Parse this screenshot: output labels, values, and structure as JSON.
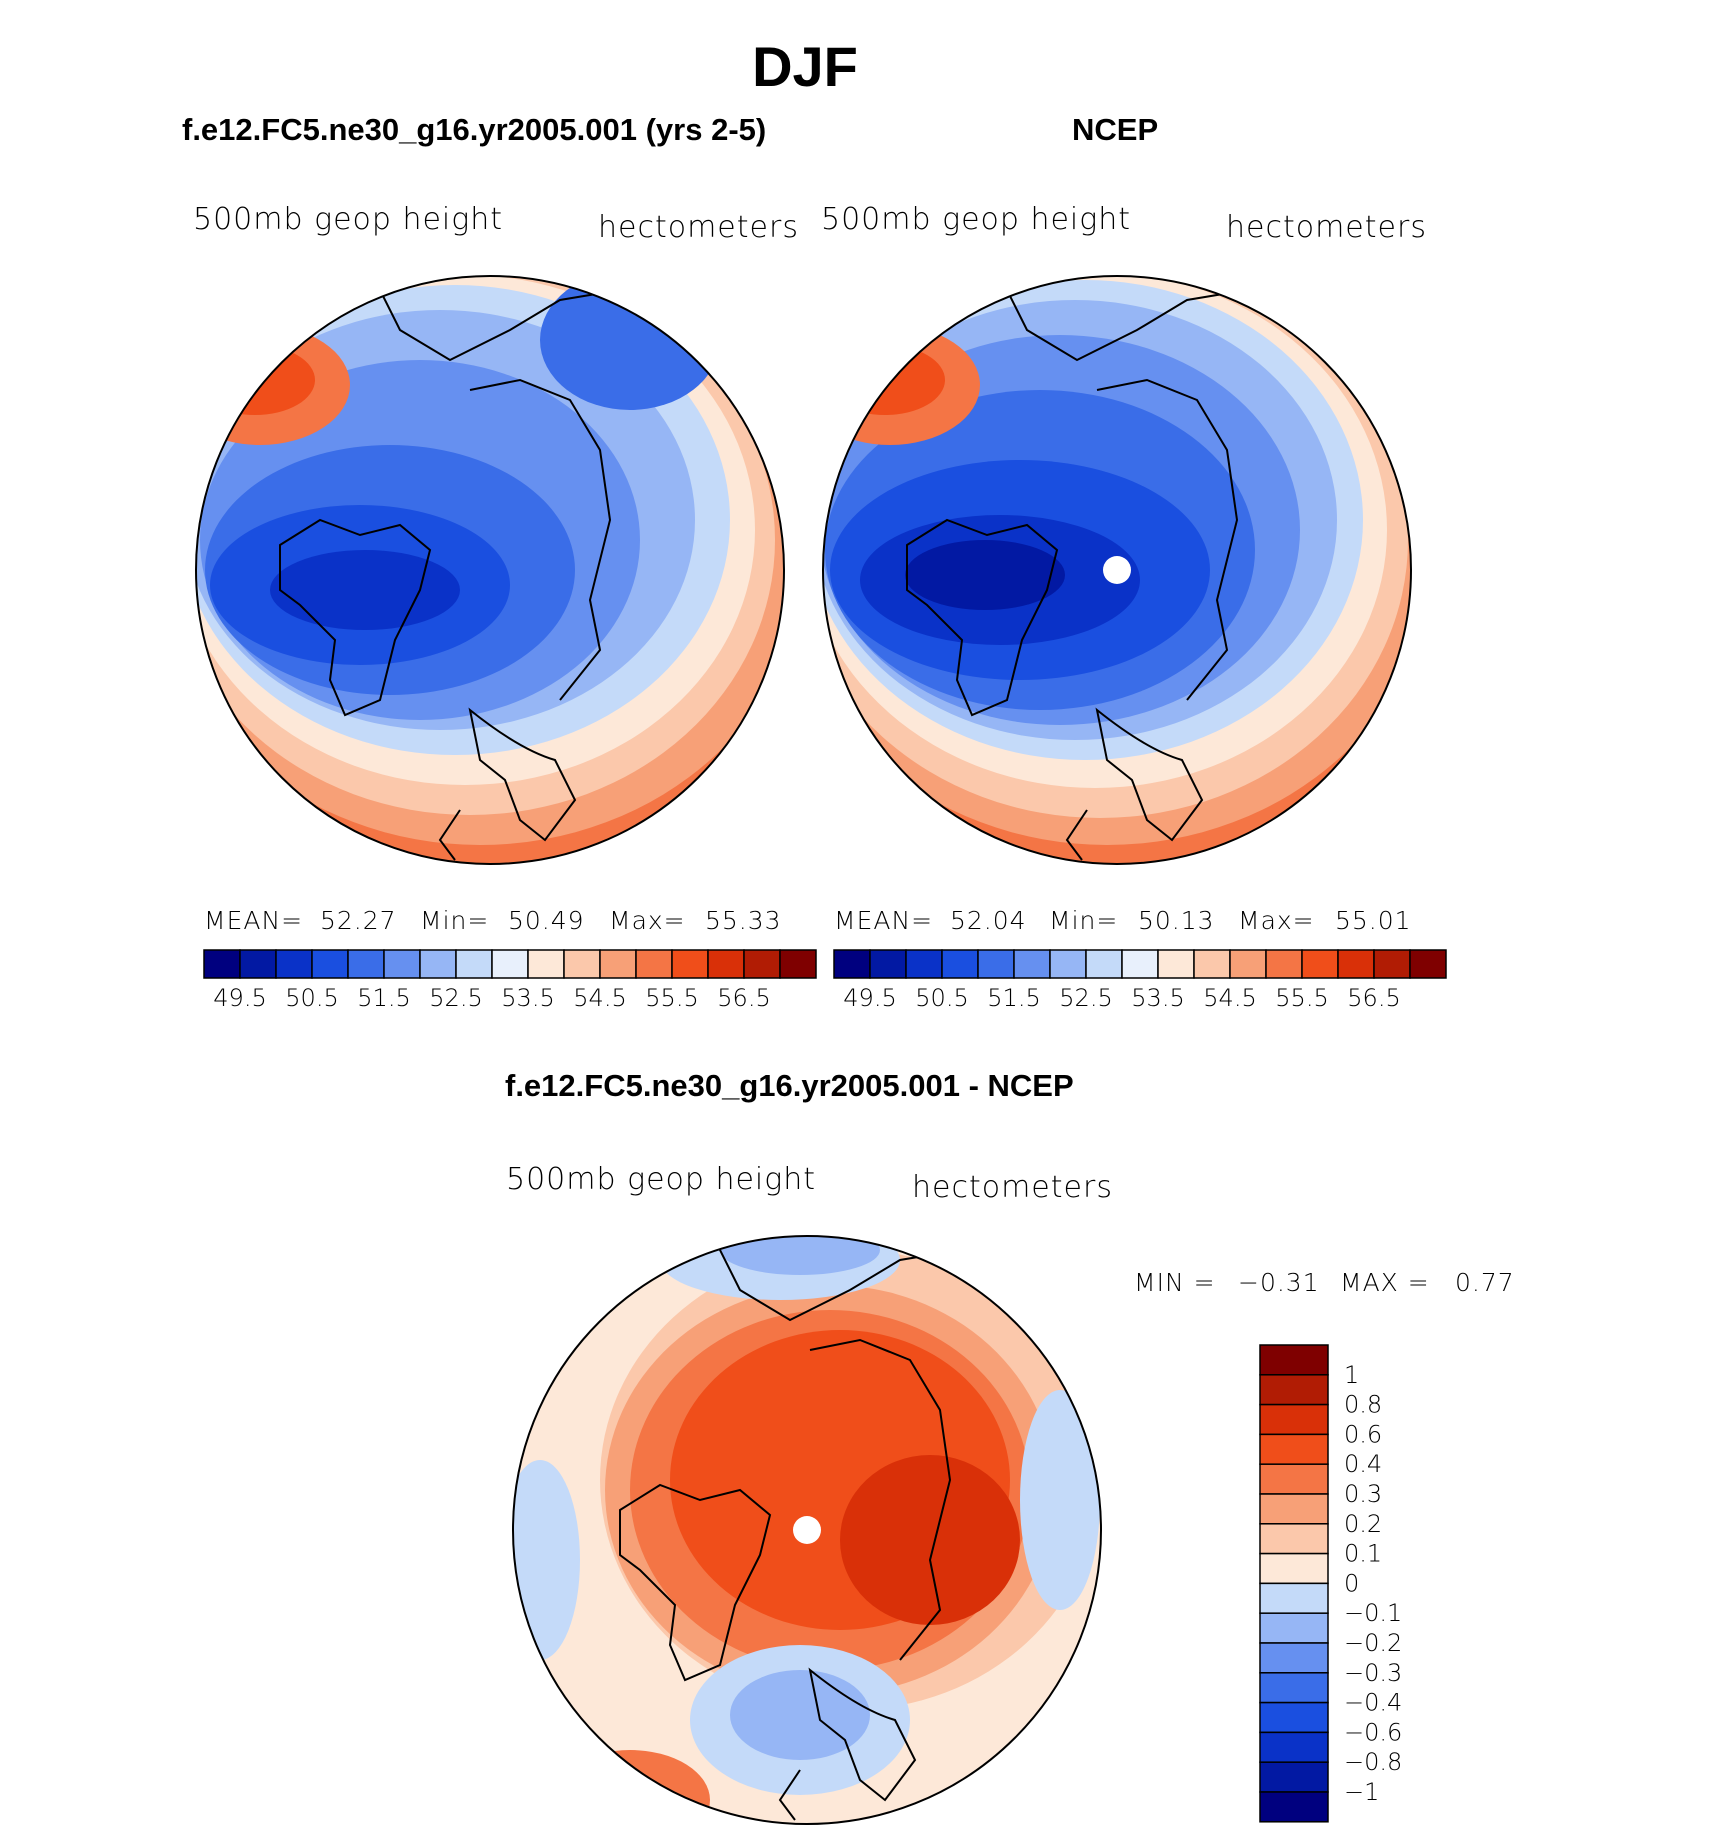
{
  "figure": {
    "season": "DJF",
    "diff_title": "f.e12.FC5.ne30_g16.yr2005.001 - NCEP"
  },
  "panels": [
    {
      "title": "f.e12.FC5.ne30_g16.yr2005.001 (yrs 2-5)",
      "variable": "500mb geop height",
      "units": "hectometers",
      "stats": {
        "mean_label": "MEAN=",
        "mean": "52.27",
        "min_label": "Min=",
        "min": "50.49",
        "max_label": "Max=",
        "max": "55.33"
      }
    },
    {
      "title": "NCEP",
      "variable": "500mb geop height",
      "units": "hectometers",
      "stats": {
        "mean_label": "MEAN=",
        "mean": "52.04",
        "min_label": "Min=",
        "min": "50.13",
        "max_label": "Max=",
        "max": "55.01"
      }
    },
    {
      "title": "f.e12.FC5.ne30_g16.yr2005.001 - NCEP",
      "variable": "500mb geop height",
      "units": "hectometers",
      "stats": {
        "min_label": "MIN =",
        "min": "−0.31",
        "max_label": "MAX =",
        "max": "0.77"
      }
    }
  ],
  "chart_data": [
    {
      "type": "contour",
      "title": "f.e12.FC5.ne30_g16.yr2005.001 (yrs 2-5)",
      "projection": "polar stereographic (North Pole)",
      "levels": [
        49.5,
        50,
        50.5,
        51,
        51.5,
        52,
        52.5,
        53,
        53.5,
        54,
        54.5,
        55,
        55.5,
        56,
        56.5
      ],
      "tick_labels": [
        "49.5",
        "50.5",
        "51.5",
        "52.5",
        "53.5",
        "54.5",
        "55.5",
        "56.5"
      ],
      "mean": 52.27,
      "min": 50.49,
      "max": 55.33
    },
    {
      "type": "contour",
      "title": "NCEP",
      "projection": "polar stereographic (North Pole)",
      "levels": [
        49.5,
        50,
        50.5,
        51,
        51.5,
        52,
        52.5,
        53,
        53.5,
        54,
        54.5,
        55,
        55.5,
        56,
        56.5
      ],
      "tick_labels": [
        "49.5",
        "50.5",
        "51.5",
        "52.5",
        "53.5",
        "54.5",
        "55.5",
        "56.5"
      ],
      "mean": 52.04,
      "min": 50.13,
      "max": 55.01
    },
    {
      "type": "contour",
      "title": "f.e12.FC5.ne30_g16.yr2005.001 - NCEP",
      "projection": "polar stereographic (North Pole)",
      "levels": [
        -1,
        -0.8,
        -0.6,
        -0.4,
        -0.3,
        -0.2,
        -0.1,
        0,
        0.1,
        0.2,
        0.3,
        0.4,
        0.6,
        0.8,
        1
      ],
      "tick_labels": [
        "1",
        "0.8",
        "0.6",
        "0.4",
        "0.3",
        "0.2",
        "0.1",
        "0",
        "−0.1",
        "−0.2",
        "−0.3",
        "−0.4",
        "−0.6",
        "−0.8",
        "−1"
      ],
      "min": -0.31,
      "max": 0.77
    }
  ],
  "colors": {
    "scale": [
      "#00007f",
      "#0219a3",
      "#0a32c8",
      "#1a4fe0",
      "#3a6de8",
      "#6690f0",
      "#96b6f5",
      "#c4daf9",
      "#e8f0fc",
      "#fde8d8",
      "#fbc8ab",
      "#f7a077",
      "#f47545",
      "#f04e1a",
      "#d93008",
      "#b11c04",
      "#7f0000"
    ],
    "blues": [
      "#00007f",
      "#0219a3",
      "#0a32c8",
      "#1a4fe0",
      "#3a6de8",
      "#6690f0",
      "#96b6f5",
      "#c4daf9"
    ],
    "reds": [
      "#fde8d8",
      "#fbc8ab",
      "#f7a077",
      "#f47545",
      "#f04e1a",
      "#d93008",
      "#b11c04",
      "#7f0000"
    ],
    "diff_boxes": [
      "#7f0000",
      "#b11c04",
      "#d93008",
      "#f04e1a",
      "#f47545",
      "#f7a077",
      "#fbc8ab",
      "#fde8d8",
      "#c4daf9",
      "#96b6f5",
      "#6690f0",
      "#3a6de8",
      "#1a4fe0",
      "#0a32c8",
      "#0219a3",
      "#00007f"
    ]
  }
}
